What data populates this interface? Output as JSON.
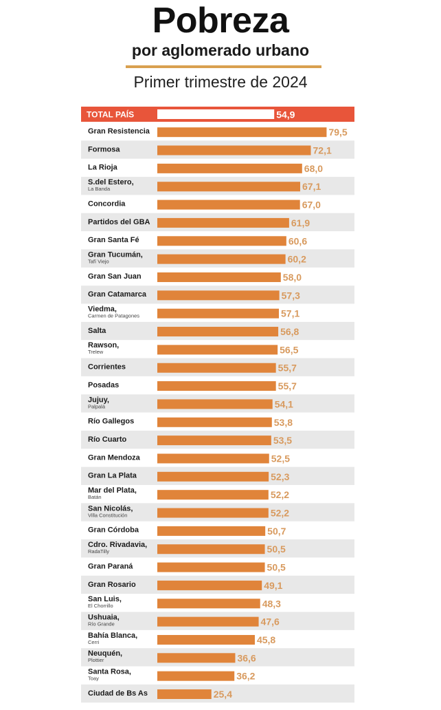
{
  "header": {
    "title": "Pobreza",
    "subtitle": "por aglomerado urbano",
    "period": "Primer trimestre de 2024"
  },
  "colors": {
    "bar": "#e0843a",
    "total_band": "#e8553a",
    "total_bar": "#ffffff",
    "stripe": "#e8e8e8",
    "value_text": "#d89a5e",
    "divider": "#d9a050"
  },
  "chart_data": {
    "type": "bar",
    "orientation": "horizontal",
    "title": "Pobreza",
    "subtitle": "por aglomerado urbano",
    "period": "Primer trimestre de 2024",
    "xlim": [
      0,
      100
    ],
    "grid": false,
    "total": {
      "label": "TOTAL PAÍS",
      "value": 54.9,
      "value_label": "54,9"
    },
    "rows": [
      {
        "label": "Gran Resistencia",
        "sub": "",
        "value": 79.5,
        "value_label": "79,5"
      },
      {
        "label": "Formosa",
        "sub": "",
        "value": 72.1,
        "value_label": "72,1"
      },
      {
        "label": "La Rioja",
        "sub": "",
        "value": 68.0,
        "value_label": "68,0"
      },
      {
        "label": "S.del Estero,",
        "sub": "La Banda",
        "value": 67.1,
        "value_label": "67,1"
      },
      {
        "label": "Concordia",
        "sub": "",
        "value": 67.0,
        "value_label": "67,0"
      },
      {
        "label": "Partidos del GBA",
        "sub": "",
        "value": 61.9,
        "value_label": "61,9"
      },
      {
        "label": "Gran Santa Fé",
        "sub": "",
        "value": 60.6,
        "value_label": "60,6"
      },
      {
        "label": "Gran Tucumán,",
        "sub": "Tafí Viejo",
        "value": 60.2,
        "value_label": "60,2"
      },
      {
        "label": "Gran San Juan",
        "sub": "",
        "value": 58.0,
        "value_label": "58,0"
      },
      {
        "label": "Gran Catamarca",
        "sub": "",
        "value": 57.3,
        "value_label": "57,3"
      },
      {
        "label": "Viedma,",
        "sub": "Carmen de Patagones",
        "value": 57.1,
        "value_label": "57,1"
      },
      {
        "label": "Salta",
        "sub": "",
        "value": 56.8,
        "value_label": "56,8"
      },
      {
        "label": "Rawson,",
        "sub": "Trelew",
        "value": 56.5,
        "value_label": "56,5"
      },
      {
        "label": "Corrientes",
        "sub": "",
        "value": 55.7,
        "value_label": "55,7"
      },
      {
        "label": "Posadas",
        "sub": "",
        "value": 55.7,
        "value_label": "55,7"
      },
      {
        "label": "Jujuy,",
        "sub": "Palpalá",
        "value": 54.1,
        "value_label": "54,1"
      },
      {
        "label": "Río Gallegos",
        "sub": "",
        "value": 53.8,
        "value_label": "53,8"
      },
      {
        "label": "Río Cuarto",
        "sub": "",
        "value": 53.5,
        "value_label": "53,5"
      },
      {
        "label": "Gran Mendoza",
        "sub": "",
        "value": 52.5,
        "value_label": "52,5"
      },
      {
        "label": "Gran La Plata",
        "sub": "",
        "value": 52.3,
        "value_label": "52,3"
      },
      {
        "label": "Mar del Plata,",
        "sub": "Batán",
        "value": 52.2,
        "value_label": "52,2"
      },
      {
        "label": "San Nicolás,",
        "sub": "Villa Constitución",
        "value": 52.2,
        "value_label": "52,2"
      },
      {
        "label": "Gran Córdoba",
        "sub": "",
        "value": 50.7,
        "value_label": "50,7"
      },
      {
        "label": "Cdro. Rivadavia,",
        "sub": "RadaTilly",
        "value": 50.5,
        "value_label": "50,5"
      },
      {
        "label": "Gran Paraná",
        "sub": "",
        "value": 50.5,
        "value_label": "50,5"
      },
      {
        "label": "Gran Rosario",
        "sub": "",
        "value": 49.1,
        "value_label": "49,1"
      },
      {
        "label": "San Luis,",
        "sub": "El Chorrillo",
        "value": 48.3,
        "value_label": "48,3"
      },
      {
        "label": "Ushuaia,",
        "sub": "Río Grande",
        "value": 47.6,
        "value_label": "47,6"
      },
      {
        "label": "Bahía Blanca,",
        "sub": "Cerri",
        "value": 45.8,
        "value_label": "45,8"
      },
      {
        "label": "Neuquén,",
        "sub": "Plottier",
        "value": 36.6,
        "value_label": "36,6"
      },
      {
        "label": "Santa Rosa,",
        "sub": "Toay",
        "value": 36.2,
        "value_label": "36,2"
      },
      {
        "label": "Ciudad de Bs As",
        "sub": "",
        "value": 25.4,
        "value_label": "25,4"
      }
    ]
  }
}
